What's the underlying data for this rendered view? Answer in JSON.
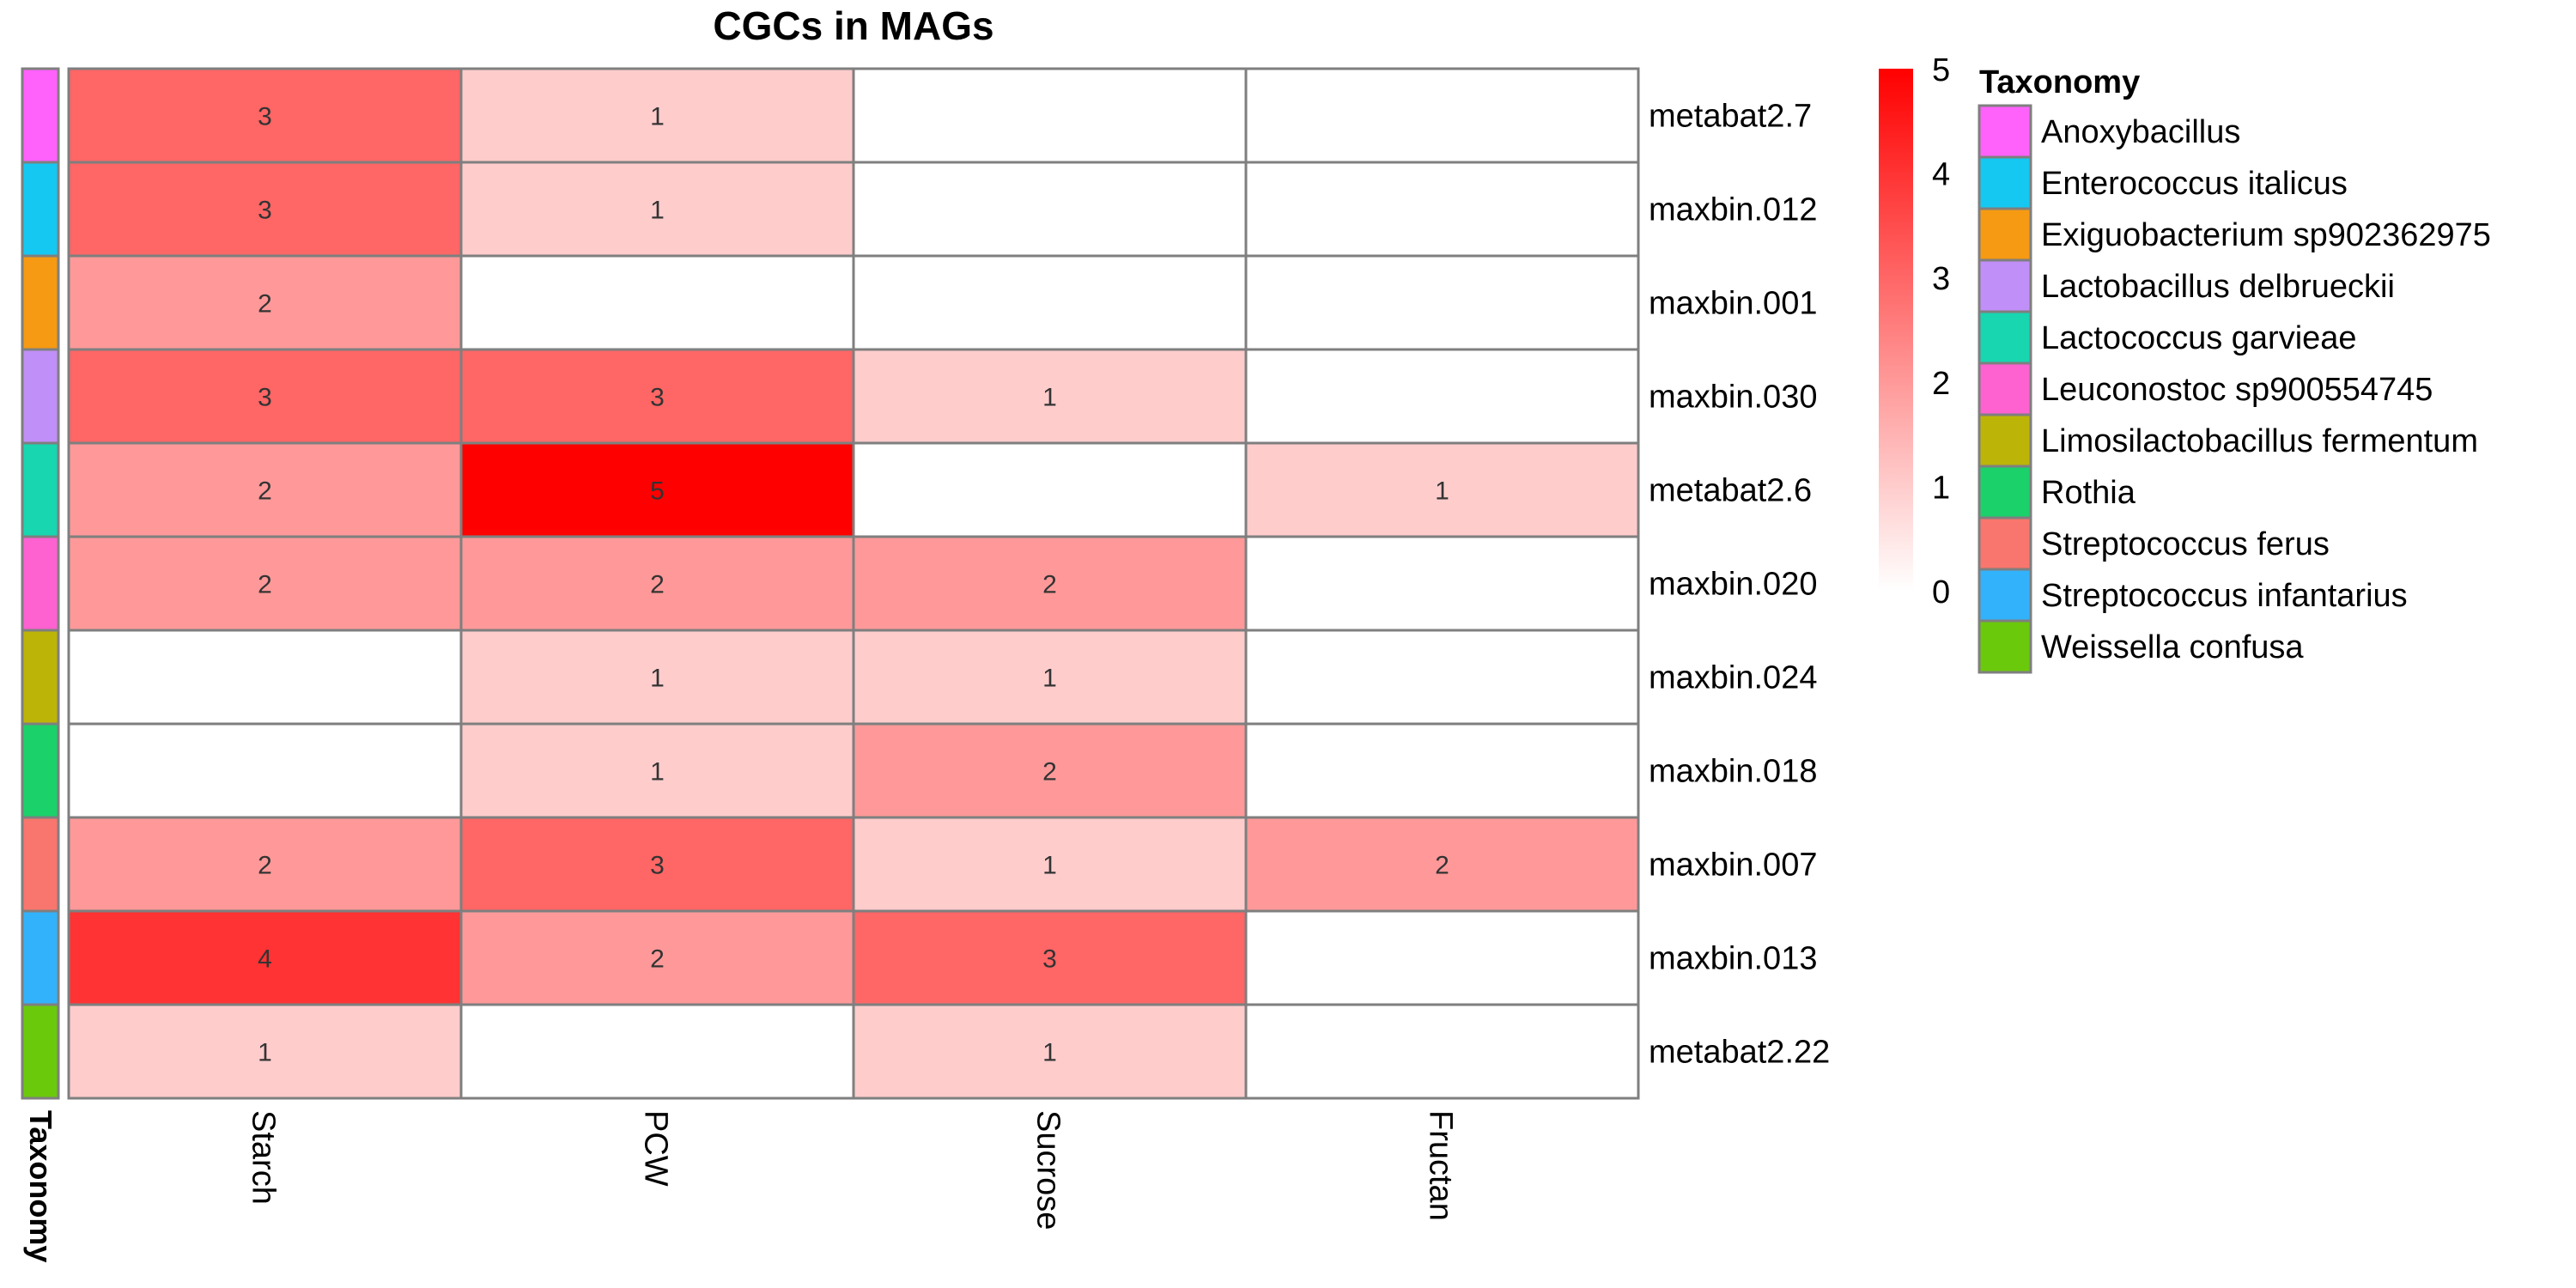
{
  "chart_data": {
    "type": "heatmap",
    "title": "CGCs in MAGs",
    "columns": [
      "Starch",
      "PCW",
      "Sucrose",
      "Fructan"
    ],
    "rows": [
      "metabat2.7",
      "maxbin.012",
      "maxbin.001",
      "maxbin.030",
      "metabat2.6",
      "maxbin.020",
      "maxbin.024",
      "maxbin.018",
      "maxbin.007",
      "maxbin.013",
      "metabat2.22"
    ],
    "values": [
      [
        3,
        1,
        0,
        0
      ],
      [
        3,
        1,
        0,
        0
      ],
      [
        2,
        0,
        0,
        0
      ],
      [
        3,
        3,
        1,
        0
      ],
      [
        2,
        5,
        0,
        1
      ],
      [
        2,
        2,
        2,
        0
      ],
      [
        0,
        1,
        1,
        0
      ],
      [
        0,
        1,
        2,
        0
      ],
      [
        2,
        3,
        1,
        2
      ],
      [
        4,
        2,
        3,
        0
      ],
      [
        1,
        0,
        1,
        0
      ]
    ],
    "row_annotation": {
      "name": "Taxonomy",
      "values": [
        "Anoxybacillus",
        "Enterococcus italicus",
        "Exiguobacterium sp902362975",
        "Lactobacillus delbrueckii",
        "Lactococcus garvieae",
        "Leuconostoc sp900554745",
        "Limosilactobacillus fermentum",
        "Rothia",
        "Streptococcus ferus",
        "Streptococcus infantarius",
        "Weissella confusa"
      ]
    },
    "color_scale": {
      "min": 0,
      "max": 5,
      "low_color": "#ffffff",
      "high_color": "#ff0000",
      "ticks": [
        0,
        1,
        2,
        3,
        4,
        5
      ]
    },
    "legend": {
      "title": "Taxonomy",
      "entries": [
        {
          "label": "Anoxybacillus",
          "color": "#ff61fb"
        },
        {
          "label": "Enterococcus italicus",
          "color": "#14c8f2"
        },
        {
          "label": "Exiguobacterium sp902362975",
          "color": "#f59a12"
        },
        {
          "label": "Lactobacillus delbrueckii",
          "color": "#c08ff7"
        },
        {
          "label": "Lactococcus garvieae",
          "color": "#17d6b0"
        },
        {
          "label": "Leuconostoc sp900554745",
          "color": "#fd62d0"
        },
        {
          "label": "Limosilactobacillus fermentum",
          "color": "#bdb408"
        },
        {
          "label": "Rothia",
          "color": "#1bd16a"
        },
        {
          "label": "Streptococcus ferus",
          "color": "#f8766d"
        },
        {
          "label": "Streptococcus infantarius",
          "color": "#32b2fb"
        },
        {
          "label": "Weissella confusa",
          "color": "#6bc90b"
        }
      ],
      "placement": "right"
    },
    "cell_labels_shown_for_nonzero": true
  }
}
